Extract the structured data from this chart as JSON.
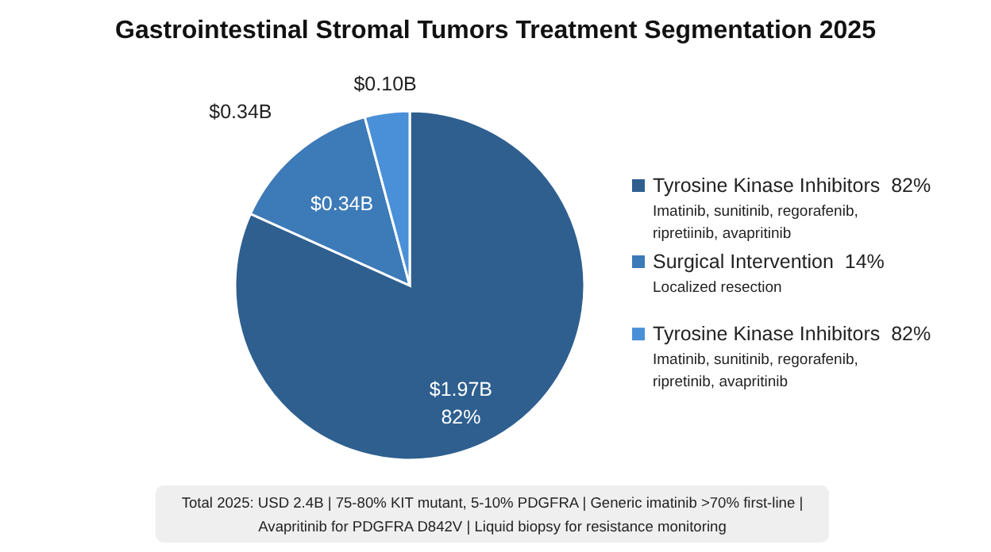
{
  "chart_data": {
    "type": "pie",
    "title": "Gastrointestinal Stromal Tumors Treatment Segmentation 2025",
    "categories": [
      "Tyrosine Kinase Inhibitors  82%",
      "Surgical Intervention  14%",
      "Tyrosine Kinase Inhibitors  82%"
    ],
    "values": [
      1.97,
      0.34,
      0.1
    ],
    "colors": [
      "#2e5f8f",
      "#3d7ab8",
      "#4a90d9"
    ],
    "value_labels": [
      "$1.97B",
      "$0.34B",
      "$0.10B"
    ],
    "legend": "right",
    "annotations": [
      "Imatinib, sunitinib, regorafenib,\nripretiinib, avapritinib",
      "Localized resection",
      "Imatinib, sunitinib, regorafenib,\nripretinib, avapritinib",
      {
        "text": "$0.34B",
        "x": "Surgical Intervention  14%"
      },
      {
        "text": "82%",
        "x": "Tyrosine Kinase Inhibitors  82%"
      },
      "Total 2025: USD 2.4B | 75-80% KIT mutant, 5-10% PDGFRA | Generic imatinib >70% first-line |\nAvapritinib for PDGFRA D842V | Liquid biopsy for resistance monitoring"
    ]
  }
}
